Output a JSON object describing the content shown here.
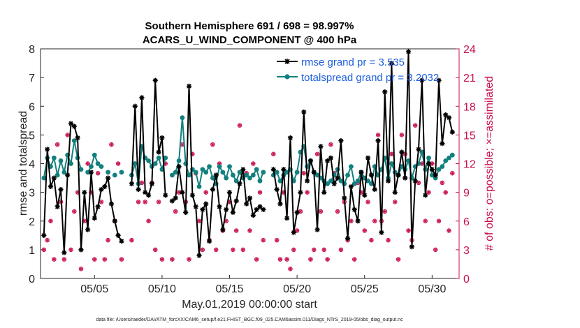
{
  "chart_data": {
    "type": "line",
    "title_lines": [
      "Southern Hemisphere 691 / 698 = 98.997%",
      "ACARS_U_WIND_COMPONENT @ 400 hPa"
    ],
    "xlabel": "May.01,2019 00:00:00 start",
    "ylabel": "rmse and totalspread",
    "y2label": "# of obs: o=possible; ×=assimilated",
    "footer": "data file: /Users/raeder/DAI/ATM_forcXX/CAM6_setup/f.e21.FHIST_BGC.f09_025.CAM6assim.011/Diags_NTrS_2019-05/obs_diag_output.nc",
    "xlim": [
      1,
      32
    ],
    "ylim": [
      0,
      8
    ],
    "y2lim": [
      0,
      24
    ],
    "xticks": [
      5,
      10,
      15,
      20,
      25,
      30
    ],
    "xtick_labels": [
      "05/05",
      "05/10",
      "05/15",
      "05/20",
      "05/25",
      "05/30"
    ],
    "yticks": [
      "0",
      "1",
      "2",
      "3",
      "4",
      "5",
      "6",
      "7",
      "8"
    ],
    "y2ticks": [
      "0",
      "3",
      "6",
      "9",
      "12",
      "15",
      "18",
      "21",
      "24"
    ],
    "legend_position": "top-right",
    "series": [
      {
        "name": "rmse grand pr = 3.535",
        "color": "#000000",
        "marker": "asterisk",
        "x": [
          1.25,
          1.5,
          1.75,
          2.0,
          2.25,
          2.5,
          2.75,
          3.0,
          3.25,
          3.5,
          3.75,
          4.0,
          4.25,
          4.5,
          4.75,
          5.0,
          5.25,
          5.5,
          5.75,
          6.0,
          6.25,
          6.5,
          6.75,
          7.0,
          7.25,
          7.75,
          8.0,
          8.25,
          8.5,
          8.75,
          9.0,
          9.25,
          9.5,
          9.75,
          10.0,
          10.25,
          10.5,
          10.75,
          11.0,
          11.25,
          11.5,
          11.75,
          12.0,
          12.25,
          12.5,
          12.75,
          13.0,
          13.25,
          13.5,
          13.75,
          14.0,
          14.25,
          14.5,
          14.75,
          15.0,
          15.25,
          15.5,
          15.75,
          16.0,
          16.25,
          16.5,
          16.75,
          17.0,
          17.25,
          17.5,
          18.0,
          18.25,
          18.5,
          18.75,
          19.0,
          19.25,
          19.5,
          19.75,
          20.0,
          20.25,
          20.5,
          20.75,
          21.0,
          21.25,
          21.5,
          21.75,
          22.0,
          22.25,
          22.5,
          22.75,
          23.0,
          23.25,
          23.5,
          23.75,
          24.0,
          24.25,
          24.5,
          24.75,
          25.0,
          25.25,
          25.5,
          25.75,
          26.0,
          26.25,
          26.5,
          26.75,
          27.0,
          27.25,
          27.5,
          27.75,
          28.0,
          28.25,
          28.5,
          28.75,
          29.0,
          29.25,
          29.5,
          29.75,
          30.0,
          30.25,
          30.5,
          30.75,
          31.0,
          31.25,
          31.5
        ],
        "y": [
          1.5,
          4.5,
          3.2,
          3.5,
          2.5,
          3.1,
          0.9,
          3.6,
          5.4,
          5.3,
          4.9,
          1.0,
          3.0,
          1.7,
          3.7,
          2.1,
          2.5,
          3.1,
          3.2,
          3.5,
          2.6,
          2.0,
          1.5,
          1.3,
          null,
          3.3,
          6.0,
          3.1,
          6.3,
          3.0,
          2.9,
          3.3,
          6.9,
          4.4,
          4.9,
          2.9,
          null,
          2.7,
          2.8,
          3.9,
          3.0,
          2.3,
          6.7,
          2.9,
          2.5,
          0.8,
          2.4,
          2.6,
          1.3,
          3.1,
          3.6,
          2.5,
          1.7,
          2.4,
          3.0,
          2.3,
          2.7,
          3.3,
          3.8,
          2.6,
          2.8,
          2.2,
          2.4,
          2.5,
          2.4,
          null,
          3.8,
          3.1,
          2.6,
          3.8,
          2.1,
          4.9,
          1.6,
          2.3,
          3.0,
          5.8,
          3.4,
          4.1,
          3.7,
          1.7,
          4.6,
          3.0,
          4.1,
          4.2,
          3.3,
          3.5,
          4.8,
          2.8,
          1.4,
          3.2,
          2.4,
          2.0,
          3.7,
          2.9,
          4.2,
          3.6,
          3.1,
          4.8,
          1.6,
          6.5,
          3.4,
          7.5,
          3.0,
          3.6,
          4.4,
          3.5,
          7.9,
          1.1,
          3.4,
          4.5,
          6.9,
          2.9,
          4.0,
          3.8,
          3.6,
          6.9,
          4.7,
          5.7,
          5.6,
          5.1
        ],
        "labelled_name": true
      },
      {
        "name": "totalspread grand pr = 3.2032",
        "color": "#12807e",
        "marker": "circle",
        "x": [
          1.25,
          1.5,
          1.75,
          2.0,
          2.25,
          2.5,
          2.75,
          3.0,
          3.25,
          3.5,
          3.75,
          4.0,
          4.25,
          4.5,
          4.75,
          5.0,
          5.25,
          5.5,
          5.75,
          6.0,
          6.25,
          6.5,
          6.75,
          7.0,
          7.25,
          7.75,
          8.0,
          8.25,
          8.5,
          8.75,
          9.0,
          9.25,
          9.5,
          9.75,
          10.0,
          10.25,
          10.5,
          10.75,
          11.0,
          11.25,
          11.5,
          11.75,
          12.0,
          12.25,
          12.5,
          12.75,
          13.0,
          13.25,
          13.5,
          13.75,
          14.0,
          14.25,
          14.5,
          14.75,
          15.0,
          15.25,
          15.5,
          15.75,
          16.0,
          16.25,
          16.5,
          16.75,
          17.0,
          17.25,
          17.5,
          18.0,
          18.25,
          18.5,
          18.75,
          19.0,
          19.25,
          19.5,
          19.75,
          20.0,
          20.25,
          20.5,
          20.75,
          21.0,
          21.25,
          21.5,
          21.75,
          22.0,
          22.25,
          22.5,
          22.75,
          23.0,
          23.25,
          23.5,
          23.75,
          24.0,
          24.25,
          24.5,
          24.75,
          25.0,
          25.25,
          25.5,
          25.75,
          26.0,
          26.25,
          26.5,
          26.75,
          27.0,
          27.25,
          27.5,
          27.75,
          28.0,
          28.25,
          28.5,
          28.75,
          29.0,
          29.25,
          29.5,
          29.75,
          30.0,
          30.25,
          30.5,
          30.75,
          31.0,
          31.25,
          31.5
        ],
        "y": [
          3.5,
          4.2,
          3.9,
          4.2,
          3.6,
          4.1,
          3.7,
          4.3,
          4.0,
          4.8,
          4.2,
          3.8,
          null,
          3.7,
          3.9,
          4.3,
          4.0,
          3.9,
          null,
          3.7,
          null,
          3.6,
          null,
          3.7,
          null,
          3.6,
          4.0,
          3.3,
          4.6,
          4.2,
          4.1,
          3.9,
          4.0,
          4.2,
          3.8,
          4.2,
          null,
          3.6,
          3.7,
          4.1,
          5.6,
          4.0,
          3.6,
          3.8,
          3.7,
          3.2,
          3.8,
          3.7,
          3.9,
          3.5,
          3.3,
          3.9,
          3.7,
          3.5,
          3.9,
          3.6,
          3.4,
          3.7,
          3.5,
          3.6,
          3.5,
          3.6,
          3.8,
          3.4,
          3.7,
          null,
          3.6,
          3.7,
          3.4,
          3.6,
          3.7,
          3.8,
          3.4,
          3.7,
          4.4,
          4.6,
          3.9,
          4.1,
          3.7,
          3.6,
          3.5,
          3.4,
          3.3,
          3.4,
          3.6,
          3.8,
          3.4,
          3.3,
          3.6,
          3.9,
          3.3,
          3.4,
          3.7,
          3.5,
          3.4,
          3.3,
          3.9,
          3.6,
          3.8,
          4.2,
          3.5,
          4.0,
          3.7,
          3.6,
          3.9,
          3.8,
          4.1,
          3.5,
          3.9,
          4.0,
          4.4,
          3.8,
          4.2,
          3.6,
          3.5,
          3.8,
          3.9,
          4.1,
          4.2,
          4.3
        ],
        "labelled_name": true
      },
      {
        "name": "",
        "axis": "right",
        "type": "scatter",
        "color": "#c8104f",
        "marker": "asterisk-circle",
        "x": [
          1.25,
          1.5,
          1.75,
          2.0,
          2.25,
          2.5,
          2.75,
          3.0,
          3.25,
          3.5,
          3.75,
          4.0,
          4.25,
          4.5,
          4.75,
          5.0,
          5.25,
          5.5,
          5.75,
          6.0,
          6.25,
          6.5,
          6.75,
          7.0,
          7.25,
          7.75,
          8.0,
          8.25,
          8.5,
          8.75,
          9.0,
          9.25,
          9.5,
          9.75,
          10.0,
          10.25,
          10.5,
          10.75,
          11.0,
          11.25,
          11.5,
          11.75,
          12.0,
          12.25,
          12.5,
          12.75,
          13.0,
          13.25,
          13.5,
          13.75,
          14.0,
          14.25,
          14.5,
          14.75,
          15.0,
          15.25,
          15.5,
          15.75,
          16.0,
          16.25,
          16.5,
          16.75,
          17.0,
          17.25,
          17.5,
          18.0,
          18.25,
          18.5,
          18.75,
          19.0,
          19.25,
          19.5,
          19.75,
          20.0,
          20.25,
          20.5,
          20.75,
          21.0,
          21.25,
          21.5,
          21.75,
          22.0,
          22.25,
          22.5,
          22.75,
          23.0,
          23.25,
          23.5,
          23.75,
          24.0,
          24.25,
          24.5,
          24.75,
          25.0,
          25.25,
          25.5,
          25.75,
          26.0,
          26.25,
          26.5,
          26.75,
          27.0,
          27.25,
          27.5,
          27.75,
          28.0,
          28.25,
          28.5,
          28.75,
          29.0,
          29.25,
          29.5,
          29.75,
          30.0,
          30.25,
          30.5,
          30.75,
          31.0,
          31.25,
          31.5
        ],
        "y": [
          3,
          4,
          6,
          2,
          14,
          8,
          2,
          15,
          3,
          7,
          9,
          1,
          6,
          12,
          9,
          2,
          11,
          8,
          2,
          4,
          14,
          6,
          12,
          2,
          null,
          4,
          12,
          8,
          10,
          8,
          6,
          10,
          3,
          8,
          2,
          12,
          null,
          2,
          7,
          9,
          14,
          8,
          2,
          13,
          11,
          6,
          3,
          9,
          4,
          14,
          3,
          12,
          5,
          6,
          8,
          3,
          5,
          16,
          3,
          11,
          5,
          12,
          2,
          9,
          4,
          null,
          13,
          4,
          2,
          9,
          2,
          1,
          3,
          5,
          7,
          11,
          9,
          2,
          3,
          13,
          7,
          3,
          2,
          14,
          11,
          7,
          3,
          8,
          4,
          6,
          2,
          10,
          9,
          5,
          8,
          4,
          6,
          15,
          6,
          7,
          4,
          13,
          8,
          2,
          15,
          13,
          5,
          4,
          16,
          10,
          12,
          6,
          9,
          12,
          3,
          6,
          10,
          9,
          5,
          11
        ],
        "labelled_name": false
      }
    ]
  }
}
